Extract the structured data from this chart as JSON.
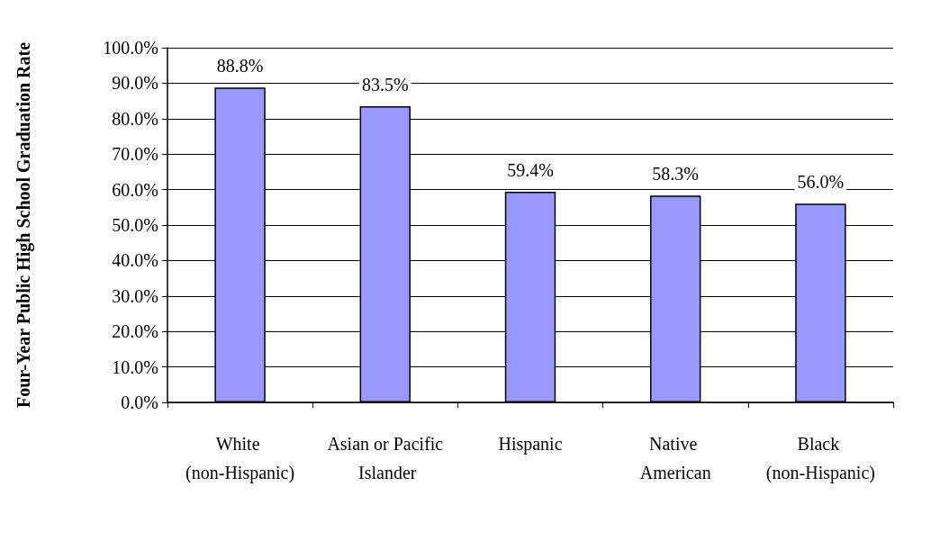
{
  "chart_data": {
    "type": "bar",
    "ylabel": "Four-Year Public High School Graduation Rate",
    "categories": [
      "White (non-Hispanic)",
      "Asian or Pacific Islander",
      "Hispanic",
      "Native American",
      "Black (non-Hispanic)"
    ],
    "values": [
      88.8,
      83.5,
      59.4,
      58.3,
      56.0
    ],
    "value_labels": [
      "88.8%",
      "83.5%",
      "59.4%",
      "58.3%",
      "56.0%"
    ],
    "color": "#9999ff",
    "ylim": [
      0,
      100
    ],
    "yticks": [
      {
        "value": 0,
        "label": "0.0%"
      },
      {
        "value": 10,
        "label": "10.0%"
      },
      {
        "value": 20,
        "label": "20.0%"
      },
      {
        "value": 30,
        "label": "30.0%"
      },
      {
        "value": 40,
        "label": "40.0%"
      },
      {
        "value": 50,
        "label": "50.0%"
      },
      {
        "value": 60,
        "label": "60.0%"
      },
      {
        "value": 70,
        "label": "70.0%"
      },
      {
        "value": 80,
        "label": "80.0%"
      },
      {
        "value": 90,
        "label": "90.0%"
      },
      {
        "value": 100,
        "label": "100.0%"
      }
    ],
    "grid": "y"
  }
}
